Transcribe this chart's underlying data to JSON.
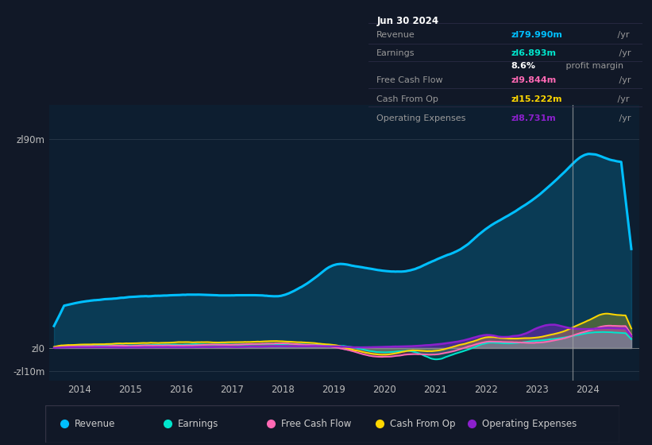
{
  "background_color": "#111827",
  "plot_bg_color": "#0d1e30",
  "series_colors": {
    "Revenue": "#00bfff",
    "Earnings": "#00e5cc",
    "Free Cash Flow": "#ff69b4",
    "Cash From Op": "#ffd700",
    "Operating Expenses": "#8b20cc"
  },
  "legend_labels": [
    "Revenue",
    "Earnings",
    "Free Cash Flow",
    "Cash From Op",
    "Operating Expenses"
  ],
  "legend_dot_colors": [
    "#00bfff",
    "#00e5cc",
    "#ff69b4",
    "#ffd700",
    "#8b20cc"
  ],
  "info_box_bg": "#0a0a14",
  "info_box_border": "#333355",
  "ylabel_top": "zl90m",
  "ylabel_zero": "zl0",
  "ylabel_neg": "-zl10m",
  "xlim": [
    2013.4,
    2025.0
  ],
  "ylim": [
    -14,
    105
  ],
  "yticks": [
    90,
    0,
    -10
  ],
  "ytick_labels": [
    "zl90m",
    "zl0",
    "-zl10m"
  ],
  "xticks": [
    2014,
    2015,
    2016,
    2017,
    2018,
    2019,
    2020,
    2021,
    2022,
    2023,
    2024
  ],
  "xtick_labels": [
    "2014",
    "2015",
    "2016",
    "2017",
    "2018",
    "2019",
    "2020",
    "2021",
    "2022",
    "2023",
    "2024"
  ],
  "divider_x": 2023.7,
  "info_date": "Jun 30 2024",
  "info_rows": [
    {
      "label": "Revenue",
      "value": "zl79.990m",
      "suffix": " /yr",
      "color": "#00bfff"
    },
    {
      "label": "Earnings",
      "value": "zl6.893m",
      "suffix": " /yr",
      "color": "#00e5cc"
    },
    {
      "label": "",
      "value": "8.6%",
      "suffix": " profit margin",
      "color": "#ffffff"
    },
    {
      "label": "Free Cash Flow",
      "value": "zl9.844m",
      "suffix": " /yr",
      "color": "#ff69b4"
    },
    {
      "label": "Cash From Op",
      "value": "zl15.222m",
      "suffix": " /yr",
      "color": "#ffd700"
    },
    {
      "label": "Operating Expenses",
      "value": "zl8.731m",
      "suffix": " /yr",
      "color": "#8b20cc"
    }
  ]
}
